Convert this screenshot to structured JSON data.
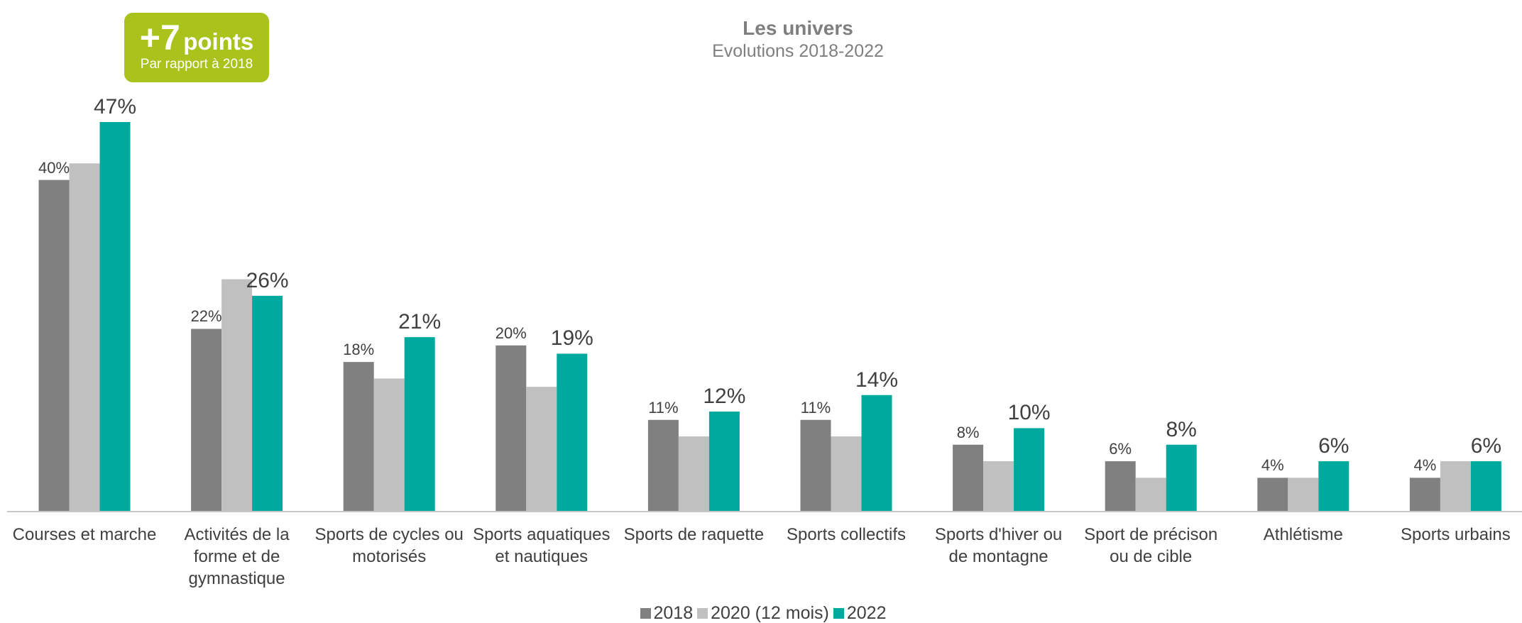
{
  "chart_data": {
    "type": "bar",
    "title": "Les univers",
    "subtitle": "Evolutions 2018-2022",
    "badge": {
      "big": "+7",
      "word": "points",
      "note": "Par rapport à 2018"
    },
    "categories": [
      "Courses et marche",
      "Activités de la forme et de gymnastique",
      "Sports de cycles ou motorisés",
      "Sports aquatiques et nautiques",
      "Sports de raquette",
      "Sports collectifs",
      "Sports d'hiver ou de montagne",
      "Sport de précison ou de cible",
      "Athlétisme",
      "Sports urbains"
    ],
    "series": [
      {
        "name": "2018",
        "color": "#808080",
        "values": [
          40,
          22,
          18,
          20,
          11,
          11,
          8,
          6,
          4,
          4
        ],
        "value_labels": [
          "40%",
          "22%",
          "18%",
          "20%",
          "11%",
          "11%",
          "8%",
          "6%",
          "4%",
          "4%"
        ]
      },
      {
        "name": "2020 (12 mois)",
        "color": "#c0c0c0",
        "values": [
          42,
          28,
          16,
          15,
          9,
          9,
          6,
          4,
          4,
          6
        ]
      },
      {
        "name": "2022",
        "color": "#00a99d",
        "values": [
          47,
          26,
          21,
          19,
          12,
          14,
          10,
          8,
          6,
          6
        ],
        "value_labels": [
          "47%",
          "26%",
          "21%",
          "19%",
          "12%",
          "14%",
          "10%",
          "8%",
          "6%",
          "6%"
        ]
      }
    ]
  }
}
